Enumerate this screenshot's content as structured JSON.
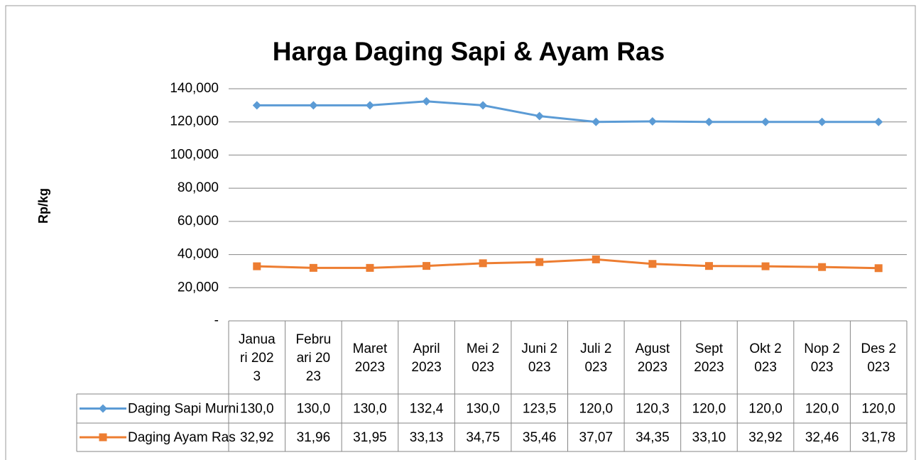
{
  "chart_data": {
    "type": "line",
    "title": "Harga Daging Sapi & Ayam Ras",
    "y_label": "Rp/kg",
    "categories": [
      "Januari 2023",
      "Februari 2023",
      "Maret 2023",
      "April 2023",
      "Mei 2023",
      "Juni 2023",
      "Juli 2023",
      "Agust 2023",
      "Sept 2023",
      "Okt 2023",
      "Nop 2023",
      "Des 2023"
    ],
    "series": [
      {
        "name": "Daging Sapi Murni",
        "color": "#5b9bd5",
        "marker": "diamond",
        "values": [
          130000,
          130000,
          130000,
          132400,
          130000,
          123500,
          120000,
          120300,
          120000,
          120000,
          120000,
          120000
        ],
        "value_labels": [
          "130,0",
          "130,0",
          "130,0",
          "132,4",
          "130,0",
          "123,5",
          "120,0",
          "120,3",
          "120,0",
          "120,0",
          "120,0",
          "120,0"
        ]
      },
      {
        "name": "Daging Ayam Ras",
        "color": "#ed7d31",
        "marker": "square",
        "values": [
          32920,
          31960,
          31950,
          33130,
          34750,
          35460,
          37070,
          34350,
          33100,
          32920,
          32460,
          31780
        ],
        "value_labels": [
          "32,92",
          "31,96",
          "31,95",
          "33,13",
          "34,75",
          "35,46",
          "37,07",
          "34,35",
          "33,10",
          "32,92",
          "32,46",
          "31,78"
        ]
      }
    ],
    "ylim": [
      0,
      140000
    ],
    "yticks": [
      {
        "value": 0,
        "label": "-"
      },
      {
        "value": 20000,
        "label": "20,000"
      },
      {
        "value": 40000,
        "label": "40,000"
      },
      {
        "value": 60000,
        "label": "60,000"
      },
      {
        "value": 80000,
        "label": "80,000"
      },
      {
        "value": 100000,
        "label": "100,000"
      },
      {
        "value": 120000,
        "label": "120,000"
      },
      {
        "value": 140000,
        "label": "140,000"
      }
    ],
    "grid": true
  }
}
